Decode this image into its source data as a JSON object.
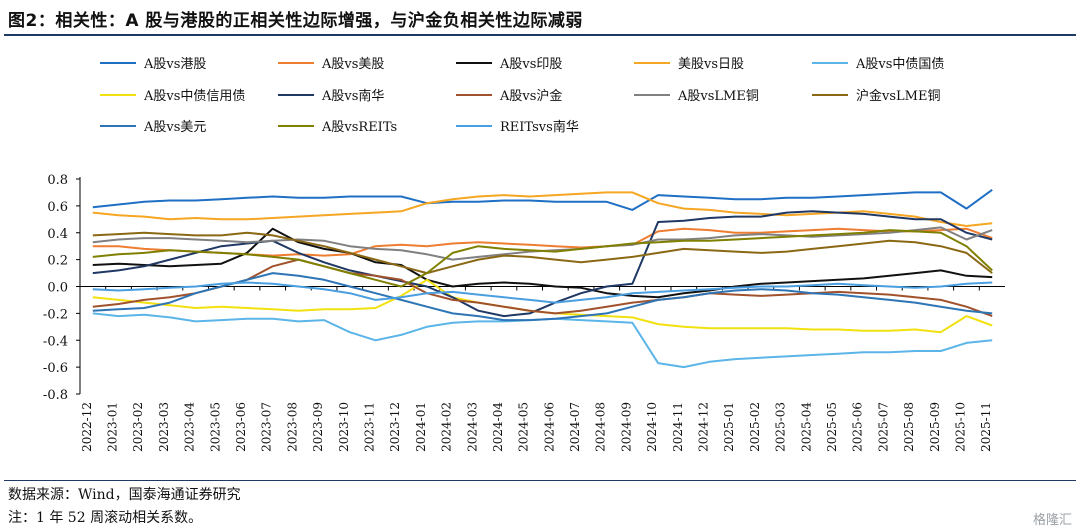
{
  "page": {
    "title": "图2：相关性：A 股与港股的正相关性边际增强，与沪金负相关性边际减弱",
    "source": "数据来源：Wind，国泰海通证券研究",
    "note": "注：1 年 52 周滚动相关系数。",
    "watermark": "格隆汇"
  },
  "chart_data": {
    "type": "line",
    "title": "",
    "xlabel": "",
    "ylabel": "",
    "ylim": [
      -0.8,
      0.8
    ],
    "yticks": [
      -0.8,
      -0.6,
      -0.4,
      -0.2,
      0.0,
      0.2,
      0.4,
      0.6,
      0.8
    ],
    "ytick_labels": [
      "-0.8",
      "-0.6",
      "-0.4",
      "-0.2",
      "0.0",
      "0.2",
      "0.4",
      "0.6",
      "0.8"
    ],
    "legend_position": "top",
    "categories": [
      "2022-12",
      "2023-01",
      "2023-02",
      "2023-03",
      "2023-04",
      "2023-05",
      "2023-06",
      "2023-07",
      "2023-08",
      "2023-09",
      "2023-10",
      "2023-11",
      "2023-12",
      "2024-01",
      "2024-02",
      "2024-03",
      "2024-04",
      "2024-05",
      "2024-06",
      "2024-07",
      "2024-08",
      "2024-09",
      "2024-10",
      "2024-11",
      "2024-12",
      "2025-01",
      "2025-02",
      "2025-03",
      "2025-04",
      "2025-05",
      "2025-06",
      "2025-07",
      "2025-08",
      "2025-09",
      "2025-10",
      "2025-11"
    ],
    "series": [
      {
        "name": "A股vs港股",
        "color": "#1f6fc5",
        "values": [
          0.59,
          0.61,
          0.63,
          0.64,
          0.64,
          0.65,
          0.66,
          0.67,
          0.66,
          0.66,
          0.67,
          0.67,
          0.67,
          0.62,
          0.63,
          0.63,
          0.64,
          0.64,
          0.63,
          0.63,
          0.63,
          0.57,
          0.68,
          0.67,
          0.66,
          0.65,
          0.65,
          0.66,
          0.66,
          0.67,
          0.68,
          0.69,
          0.7,
          0.7,
          0.58,
          0.72
        ]
      },
      {
        "name": "A股vs美股",
        "color": "#ed7d31",
        "values": [
          0.3,
          0.3,
          0.28,
          0.27,
          0.26,
          0.25,
          0.24,
          0.23,
          0.24,
          0.23,
          0.24,
          0.3,
          0.31,
          0.3,
          0.32,
          0.33,
          0.32,
          0.31,
          0.3,
          0.29,
          0.3,
          0.31,
          0.41,
          0.43,
          0.42,
          0.4,
          0.4,
          0.41,
          0.42,
          0.43,
          0.42,
          0.41,
          0.41,
          0.42,
          0.43,
          0.36
        ]
      },
      {
        "name": "A股vs印股",
        "color": "#111111",
        "values": [
          0.16,
          0.17,
          0.16,
          0.15,
          0.16,
          0.17,
          0.25,
          0.43,
          0.33,
          0.28,
          0.25,
          0.18,
          0.16,
          0.05,
          0.0,
          0.02,
          0.03,
          0.02,
          0.0,
          -0.01,
          -0.05,
          -0.07,
          -0.08,
          -0.05,
          -0.03,
          0.0,
          0.02,
          0.03,
          0.04,
          0.05,
          0.06,
          0.08,
          0.1,
          0.12,
          0.08,
          0.07
        ]
      },
      {
        "name": "美股vs日股",
        "color": "#f5a623",
        "values": [
          0.55,
          0.53,
          0.52,
          0.5,
          0.51,
          0.5,
          0.5,
          0.51,
          0.52,
          0.53,
          0.54,
          0.55,
          0.56,
          0.62,
          0.65,
          0.67,
          0.68,
          0.67,
          0.68,
          0.69,
          0.7,
          0.7,
          0.62,
          0.58,
          0.57,
          0.55,
          0.54,
          0.53,
          0.54,
          0.55,
          0.56,
          0.54,
          0.52,
          0.48,
          0.45,
          0.47
        ]
      },
      {
        "name": "A股vs中债国债",
        "color": "#5bb5e8",
        "values": [
          -0.2,
          -0.22,
          -0.21,
          -0.23,
          -0.26,
          -0.25,
          -0.24,
          -0.24,
          -0.26,
          -0.25,
          -0.34,
          -0.4,
          -0.36,
          -0.3,
          -0.27,
          -0.26,
          -0.26,
          -0.25,
          -0.24,
          -0.25,
          -0.26,
          -0.27,
          -0.57,
          -0.6,
          -0.56,
          -0.54,
          -0.53,
          -0.52,
          -0.51,
          -0.5,
          -0.49,
          -0.49,
          -0.48,
          -0.48,
          -0.42,
          -0.4
        ]
      },
      {
        "name": "A股vs中债信用债",
        "color": "#f2e10f",
        "values": [
          -0.08,
          -0.1,
          -0.12,
          -0.14,
          -0.16,
          -0.15,
          -0.16,
          -0.17,
          -0.18,
          -0.17,
          -0.17,
          -0.16,
          -0.07,
          0.05,
          -0.08,
          -0.12,
          -0.15,
          -0.18,
          -0.2,
          -0.21,
          -0.22,
          -0.23,
          -0.28,
          -0.3,
          -0.31,
          -0.31,
          -0.31,
          -0.31,
          -0.32,
          -0.32,
          -0.33,
          -0.33,
          -0.32,
          -0.34,
          -0.22,
          -0.29
        ]
      },
      {
        "name": "A股vs南华",
        "color": "#1f3864",
        "values": [
          0.1,
          0.12,
          0.15,
          0.2,
          0.25,
          0.3,
          0.32,
          0.34,
          0.25,
          0.18,
          0.12,
          0.08,
          0.04,
          0.0,
          -0.08,
          -0.18,
          -0.22,
          -0.2,
          -0.12,
          -0.05,
          0.0,
          0.02,
          0.48,
          0.49,
          0.51,
          0.52,
          0.52,
          0.55,
          0.56,
          0.55,
          0.54,
          0.52,
          0.5,
          0.5,
          0.4,
          0.35
        ]
      },
      {
        "name": "A股vs沪金",
        "color": "#a0522d",
        "values": [
          -0.15,
          -0.13,
          -0.1,
          -0.08,
          -0.05,
          0.0,
          0.05,
          0.15,
          0.2,
          0.15,
          0.1,
          0.08,
          0.05,
          -0.05,
          -0.1,
          -0.12,
          -0.15,
          -0.18,
          -0.2,
          -0.18,
          -0.15,
          -0.12,
          -0.1,
          -0.08,
          -0.05,
          -0.06,
          -0.07,
          -0.06,
          -0.05,
          -0.04,
          -0.05,
          -0.06,
          -0.08,
          -0.1,
          -0.15,
          -0.22
        ]
      },
      {
        "name": "A股vsLME铜",
        "color": "#808080",
        "values": [
          0.33,
          0.35,
          0.36,
          0.36,
          0.35,
          0.34,
          0.33,
          0.34,
          0.35,
          0.34,
          0.3,
          0.28,
          0.27,
          0.24,
          0.2,
          0.22,
          0.24,
          0.26,
          0.27,
          0.28,
          0.3,
          0.31,
          0.35,
          0.35,
          0.36,
          0.38,
          0.39,
          0.38,
          0.37,
          0.38,
          0.39,
          0.4,
          0.42,
          0.44,
          0.35,
          0.42
        ]
      },
      {
        "name": "沪金vsLME铜",
        "color": "#8b6914",
        "values": [
          0.38,
          0.39,
          0.4,
          0.39,
          0.38,
          0.38,
          0.4,
          0.38,
          0.34,
          0.3,
          0.25,
          0.2,
          0.15,
          0.1,
          0.15,
          0.2,
          0.23,
          0.22,
          0.2,
          0.18,
          0.2,
          0.22,
          0.25,
          0.28,
          0.27,
          0.26,
          0.25,
          0.26,
          0.28,
          0.3,
          0.32,
          0.34,
          0.33,
          0.3,
          0.25,
          0.1
        ]
      },
      {
        "name": "A股vs美元",
        "color": "#2e75b6",
        "values": [
          -0.18,
          -0.17,
          -0.16,
          -0.12,
          -0.05,
          0.0,
          0.05,
          0.1,
          0.08,
          0.05,
          0.0,
          -0.05,
          -0.1,
          -0.15,
          -0.2,
          -0.22,
          -0.25,
          -0.25,
          -0.24,
          -0.22,
          -0.2,
          -0.15,
          -0.1,
          -0.08,
          -0.05,
          -0.03,
          -0.02,
          -0.03,
          -0.05,
          -0.06,
          -0.08,
          -0.1,
          -0.12,
          -0.15,
          -0.18,
          -0.2
        ]
      },
      {
        "name": "A股vsREITs",
        "color": "#808000",
        "values": [
          0.22,
          0.24,
          0.25,
          0.27,
          0.26,
          0.25,
          0.24,
          0.22,
          0.2,
          0.15,
          0.1,
          0.05,
          0.0,
          0.1,
          0.25,
          0.3,
          0.28,
          0.27,
          0.26,
          0.28,
          0.3,
          0.32,
          0.33,
          0.34,
          0.34,
          0.35,
          0.36,
          0.37,
          0.38,
          0.39,
          0.4,
          0.42,
          0.41,
          0.4,
          0.3,
          0.12
        ]
      },
      {
        "name": "REITsvs南华",
        "color": "#4a9fe0",
        "values": [
          -0.02,
          -0.03,
          -0.02,
          -0.01,
          0.0,
          0.02,
          0.03,
          0.02,
          0.0,
          -0.02,
          -0.05,
          -0.1,
          -0.08,
          -0.05,
          -0.04,
          -0.06,
          -0.08,
          -0.1,
          -0.12,
          -0.1,
          -0.08,
          -0.05,
          -0.04,
          -0.03,
          -0.02,
          -0.01,
          0.0,
          0.0,
          0.01,
          0.02,
          0.01,
          0.0,
          -0.01,
          0.0,
          0.02,
          0.03
        ]
      }
    ]
  }
}
